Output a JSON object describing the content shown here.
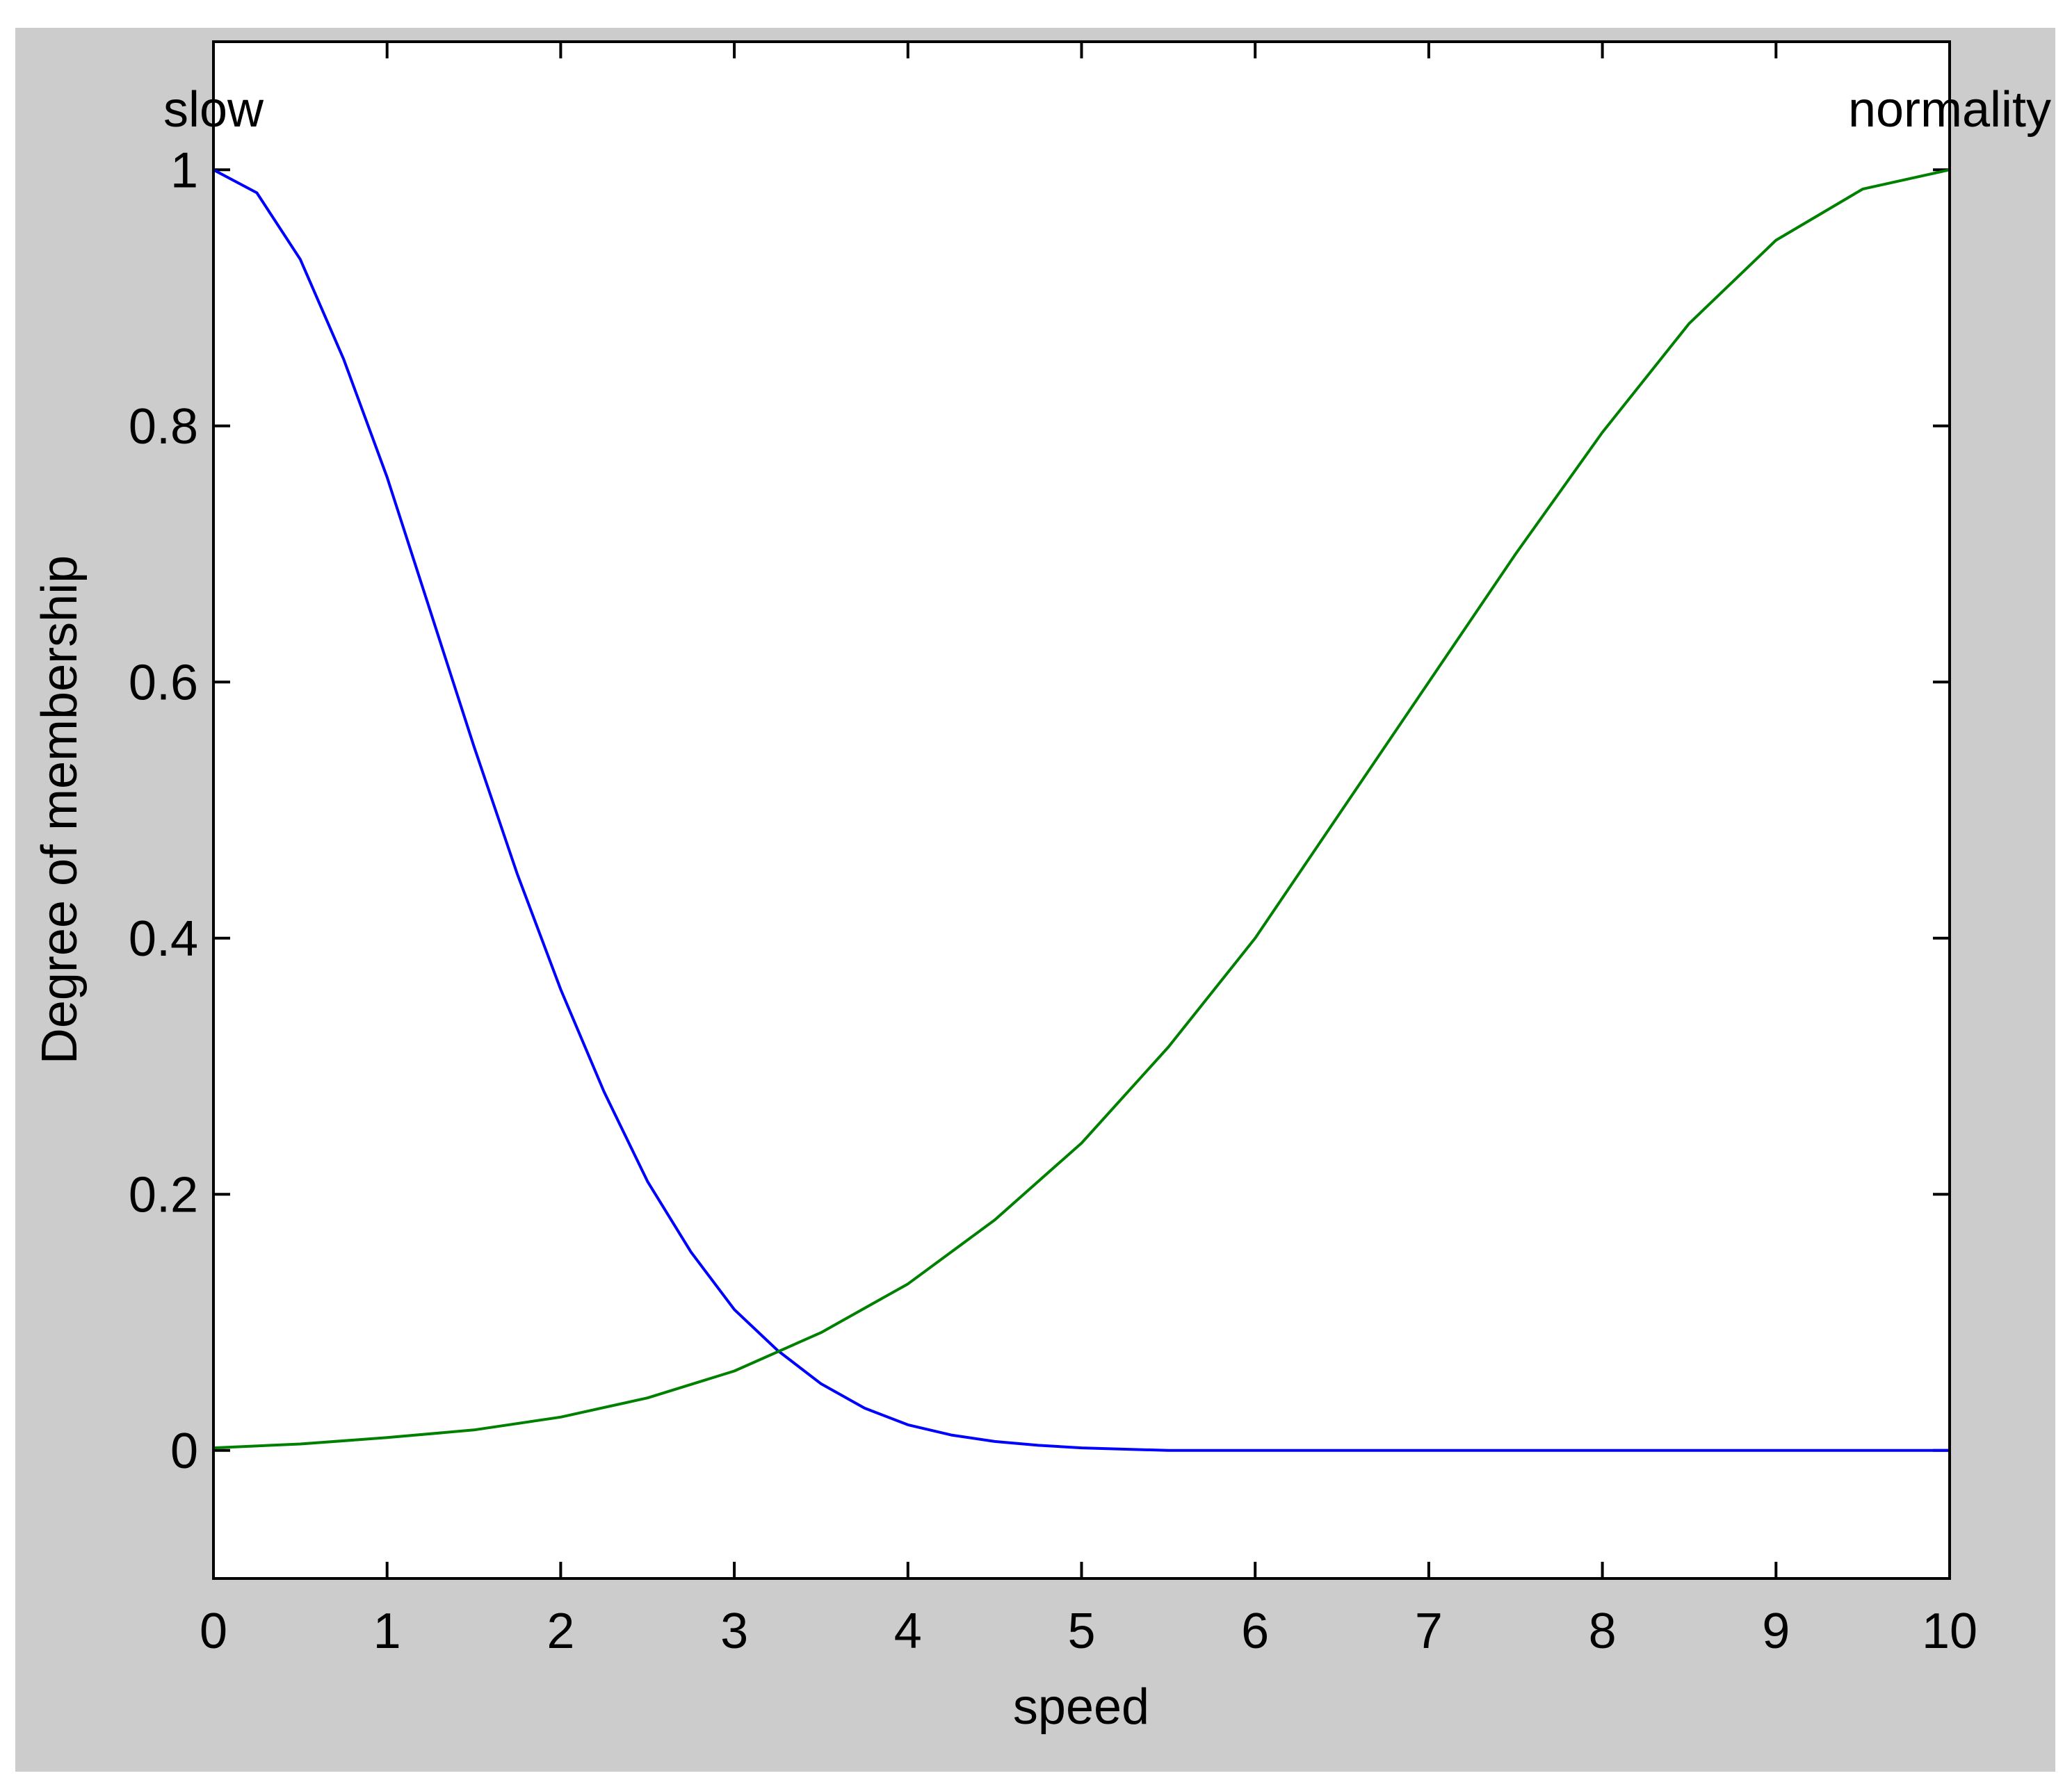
{
  "colors": {
    "figure_background": "#cccccc",
    "axes_background": "#ffffff",
    "slow_line": "#0000ff",
    "normality_line": "#008000",
    "axis_color": "#000000"
  },
  "chart_data": {
    "type": "line",
    "title": "",
    "xlabel": "speed",
    "ylabel": "Degree of membership",
    "xlim": [
      0,
      10
    ],
    "ylim": [
      -0.1,
      1.1
    ],
    "xticks": [
      0,
      1,
      2,
      3,
      4,
      5,
      6,
      7,
      8,
      9,
      10
    ],
    "xtick_labels": [
      "0",
      "1",
      "2",
      "3",
      "4",
      "5",
      "6",
      "7",
      "8",
      "9",
      "10"
    ],
    "yticks": [
      0,
      0.2,
      0.4,
      0.6,
      0.8,
      1
    ],
    "ytick_labels": [
      "0",
      "0.2",
      "0.4",
      "0.6",
      "0.8",
      "1"
    ],
    "grid": false,
    "series": [
      {
        "name": "slow",
        "x": [
          0,
          0.25,
          0.5,
          0.75,
          1,
          1.25,
          1.5,
          1.75,
          2,
          2.25,
          2.5,
          2.75,
          3,
          3.25,
          3.5,
          3.75,
          4,
          4.25,
          4.5,
          4.75,
          5,
          5.5,
          6,
          7,
          8,
          9,
          10
        ],
        "y": [
          1,
          0.982,
          0.93,
          0.852,
          0.76,
          0.655,
          0.55,
          0.45,
          0.36,
          0.28,
          0.21,
          0.155,
          0.11,
          0.078,
          0.052,
          0.033,
          0.02,
          0.012,
          0.007,
          0.004,
          0.002,
          0,
          0,
          0,
          0,
          0,
          0
        ]
      },
      {
        "name": "normality",
        "x": [
          0,
          0.5,
          1,
          1.5,
          2,
          2.5,
          3,
          3.5,
          4,
          4.5,
          5,
          5.5,
          6,
          6.5,
          7,
          7.5,
          8,
          8.5,
          9,
          9.5,
          10
        ],
        "y": [
          0.002,
          0.005,
          0.01,
          0.016,
          0.026,
          0.041,
          0.062,
          0.092,
          0.13,
          0.18,
          0.24,
          0.315,
          0.4,
          0.5,
          0.6,
          0.7,
          0.795,
          0.88,
          0.945,
          0.985,
          1
        ]
      }
    ],
    "annotations": [
      {
        "text": "slow",
        "x": 0,
        "y": 1.05
      },
      {
        "text": "normality",
        "x": 10,
        "y": 1.05
      }
    ]
  }
}
